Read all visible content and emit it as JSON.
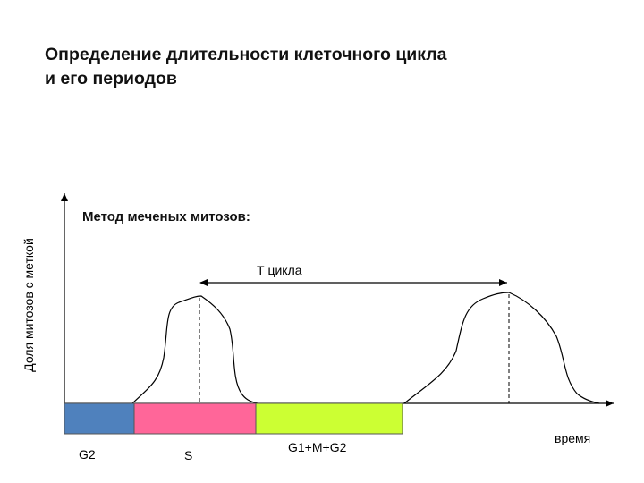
{
  "title": {
    "line1": "Определение длительности клеточного цикла",
    "line2": "и его периодов"
  },
  "subtitle": "Метод меченых митозов:",
  "axes": {
    "ylabel": "Доля митозов с меткой",
    "xlabel": "время"
  },
  "cycle_label": "Т цикла",
  "phases": [
    {
      "label": "G2",
      "color": "#4f81bd"
    },
    {
      "label": "S",
      "color": "#ff6699"
    },
    {
      "label": "G1+M+G2",
      "color": "#ccff33"
    }
  ]
}
